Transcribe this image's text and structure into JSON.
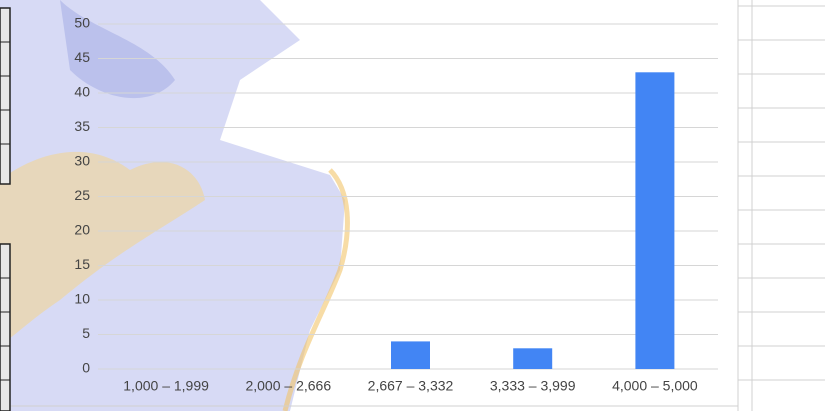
{
  "chart_data": {
    "type": "bar",
    "categories": [
      "1,000 – 1,999",
      "2,000 – 2,666",
      "2,667 – 3,332",
      "3,333 – 3,999",
      "4,000 – 5,000"
    ],
    "values": [
      0,
      0,
      4,
      3,
      43
    ],
    "color": "#4285f4",
    "ylim": [
      0,
      50
    ],
    "yticks": [
      0,
      5,
      10,
      15,
      20,
      25,
      30,
      35,
      40,
      45,
      50
    ],
    "grid": true
  }
}
